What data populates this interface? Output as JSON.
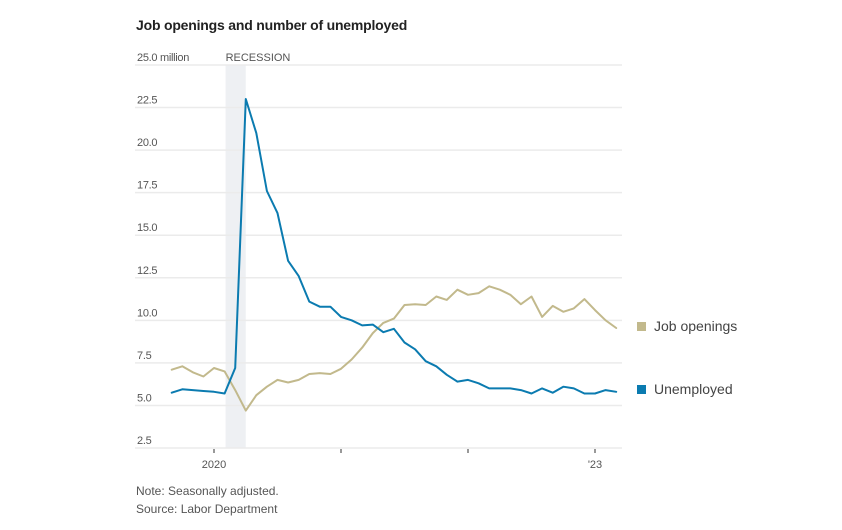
{
  "chart_data": {
    "type": "line",
    "title": "Job openings and number of unemployed",
    "ylabel": "million",
    "xlabel": "",
    "ylim": [
      2.5,
      25.0
    ],
    "yticks": [
      {
        "value": 25.0,
        "label": "25.0 million"
      },
      {
        "value": 22.5,
        "label": "22.5"
      },
      {
        "value": 20.0,
        "label": "20.0"
      },
      {
        "value": 17.5,
        "label": "17.5"
      },
      {
        "value": 15.0,
        "label": "15.0"
      },
      {
        "value": 12.5,
        "label": "12.5"
      },
      {
        "value": 10.0,
        "label": "10.0"
      },
      {
        "value": 7.5,
        "label": "7.5"
      },
      {
        "value": 5.0,
        "label": "5.0"
      },
      {
        "value": 2.5,
        "label": "2.5"
      }
    ],
    "xticks": [
      {
        "month": "2020-01",
        "label": "2020"
      },
      {
        "month": "2021-01",
        "label": ""
      },
      {
        "month": "2022-01",
        "label": ""
      },
      {
        "month": "2023-01",
        "label": "'23"
      }
    ],
    "x_start": "2019-09",
    "x_end": "2023-03",
    "grid": true,
    "legend_position": "right",
    "annotations": [
      {
        "type": "shaded-band",
        "label": "RECESSION",
        "from": "2020-02",
        "to": "2020-04"
      }
    ],
    "x": [
      "2019-09",
      "2019-10",
      "2019-11",
      "2019-12",
      "2020-01",
      "2020-02",
      "2020-03",
      "2020-04",
      "2020-05",
      "2020-06",
      "2020-07",
      "2020-08",
      "2020-09",
      "2020-10",
      "2020-11",
      "2020-12",
      "2021-01",
      "2021-02",
      "2021-03",
      "2021-04",
      "2021-05",
      "2021-06",
      "2021-07",
      "2021-08",
      "2021-09",
      "2021-10",
      "2021-11",
      "2021-12",
      "2022-01",
      "2022-02",
      "2022-03",
      "2022-04",
      "2022-05",
      "2022-06",
      "2022-07",
      "2022-08",
      "2022-09",
      "2022-10",
      "2022-11",
      "2022-12",
      "2023-01",
      "2023-02",
      "2023-03"
    ],
    "series": [
      {
        "name": "Job openings",
        "color": "#c2b98c",
        "values": [
          7.1,
          7.3,
          6.95,
          6.7,
          7.2,
          7.0,
          5.9,
          4.7,
          5.6,
          6.1,
          6.5,
          6.35,
          6.5,
          6.85,
          6.9,
          6.85,
          7.15,
          7.7,
          8.4,
          9.25,
          9.85,
          10.1,
          10.9,
          10.95,
          10.9,
          11.4,
          11.2,
          11.8,
          11.5,
          11.6,
          12.0,
          11.8,
          11.5,
          10.95,
          11.4,
          10.2,
          10.85,
          10.5,
          10.7,
          11.25,
          10.6,
          10.0,
          9.55
        ]
      },
      {
        "name": "Unemployed",
        "color": "#0b7bb0",
        "values": [
          5.75,
          5.95,
          5.9,
          5.85,
          5.8,
          5.7,
          7.2,
          23.0,
          21.0,
          17.6,
          16.3,
          13.5,
          12.6,
          11.1,
          10.8,
          10.8,
          10.2,
          10.0,
          9.7,
          9.75,
          9.3,
          9.5,
          8.7,
          8.3,
          7.6,
          7.3,
          6.8,
          6.4,
          6.5,
          6.3,
          6.0,
          6.0,
          6.0,
          5.9,
          5.7,
          6.0,
          5.75,
          6.1,
          6.0,
          5.7,
          5.7,
          5.9,
          5.8
        ]
      }
    ]
  },
  "notes": {
    "note": "Note: Seasonally adjusted.",
    "source": "Source: Labor Department"
  },
  "colors": {
    "grid": "#ebebeb",
    "recession_band": "#eef0f3",
    "axis_text": "#555555"
  }
}
